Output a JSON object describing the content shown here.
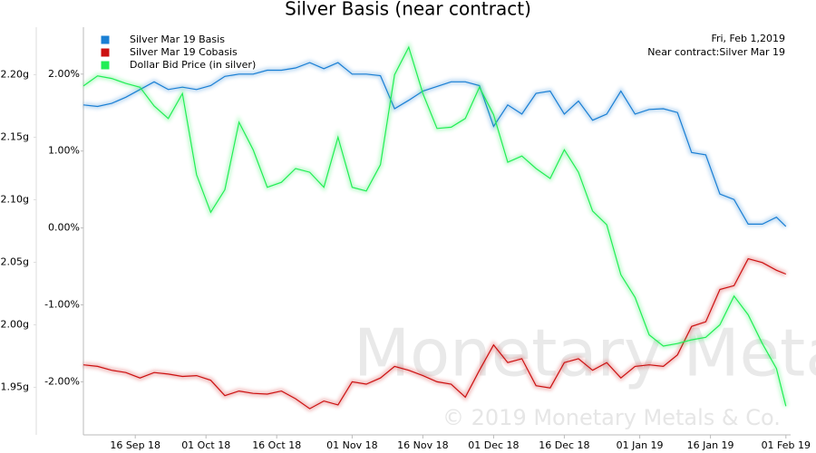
{
  "chart_data": {
    "type": "line",
    "title": "Silver Basis (near contract)",
    "annotations": [
      "Fri, Feb 1,2019",
      "Near contract:Silver Mar 19"
    ],
    "watermark": [
      "Monetary Metals",
      "© 2019 Monetary Metals & Co."
    ],
    "x": [
      "2018-09-05",
      "2018-09-08",
      "2018-09-11",
      "2018-09-14",
      "2018-09-17",
      "2018-09-20",
      "2018-09-23",
      "2018-09-26",
      "2018-09-29",
      "2018-10-02",
      "2018-10-05",
      "2018-10-08",
      "2018-10-11",
      "2018-10-14",
      "2018-10-17",
      "2018-10-20",
      "2018-10-23",
      "2018-10-26",
      "2018-10-29",
      "2018-11-01",
      "2018-11-04",
      "2018-11-07",
      "2018-11-10",
      "2018-11-13",
      "2018-11-16",
      "2018-11-19",
      "2018-11-22",
      "2018-11-25",
      "2018-11-28",
      "2018-12-01",
      "2018-12-04",
      "2018-12-07",
      "2018-12-10",
      "2018-12-13",
      "2018-12-16",
      "2018-12-19",
      "2018-12-22",
      "2018-12-25",
      "2018-12-28",
      "2018-12-31",
      "2019-01-03",
      "2019-01-06",
      "2019-01-09",
      "2019-01-12",
      "2019-01-15",
      "2019-01-18",
      "2019-01-21",
      "2019-01-24",
      "2019-01-27",
      "2019-01-30",
      "2019-02-01"
    ],
    "xlim": [
      "2018-09-05",
      "2019-02-02"
    ],
    "xticks": [
      {
        "value": "2018-09-16",
        "label": "16 Sep 18"
      },
      {
        "value": "2018-10-01",
        "label": "01 Oct 18"
      },
      {
        "value": "2018-10-16",
        "label": "16 Oct 18"
      },
      {
        "value": "2018-11-01",
        "label": "01 Nov 18"
      },
      {
        "value": "2018-11-16",
        "label": "16 Nov 18"
      },
      {
        "value": "2018-12-01",
        "label": "01 Dec 18"
      },
      {
        "value": "2018-12-16",
        "label": "16 Dec 18"
      },
      {
        "value": "2019-01-01",
        "label": "01 Jan 19"
      },
      {
        "value": "2019-01-16",
        "label": "16 Jan 19"
      },
      {
        "value": "2019-02-01",
        "label": "01 Feb 19"
      }
    ],
    "ylim": [
      -2.69,
      2.61
    ],
    "yticks": [
      {
        "value": 2,
        "label": "2.00%"
      },
      {
        "value": 1,
        "label": "1.00%"
      },
      {
        "value": 0,
        "label": "0.00%"
      },
      {
        "value": -1,
        "label": "-1.00%"
      },
      {
        "value": -2,
        "label": "-2.00%"
      }
    ],
    "y2lim": [
      1.912,
      2.238
    ],
    "y2ticks": [
      {
        "value": 2.2,
        "label": "2.20g"
      },
      {
        "value": 2.15,
        "label": "2.15g"
      },
      {
        "value": 2.1,
        "label": "2.10g"
      },
      {
        "value": 2.05,
        "label": "2.05g"
      },
      {
        "value": 2.0,
        "label": "2.00g"
      },
      {
        "value": 1.95,
        "label": "1.95g"
      }
    ],
    "legend": "top-left",
    "series": [
      {
        "name": "Silver Mar 19 Basis",
        "color": "#1a7fd4",
        "values": [
          1.6,
          1.58,
          1.62,
          1.7,
          1.8,
          1.9,
          1.8,
          1.83,
          1.8,
          1.85,
          1.97,
          2.0,
          2.0,
          2.05,
          2.05,
          2.08,
          2.15,
          2.07,
          2.15,
          2.0,
          2.0,
          1.98,
          1.55,
          1.66,
          1.78,
          1.84,
          1.9,
          1.9,
          1.85,
          1.32,
          1.6,
          1.48,
          1.75,
          1.78,
          1.48,
          1.65,
          1.4,
          1.48,
          1.78,
          1.48,
          1.54,
          1.55,
          1.5,
          0.98,
          0.95,
          0.44,
          0.37,
          0.05,
          0.05,
          0.14,
          0.02
        ]
      },
      {
        "name": "Silver Mar 19 Cobasis",
        "color": "#cc1111",
        "values": [
          -1.78,
          -1.8,
          -1.85,
          -1.88,
          -1.95,
          -1.88,
          -1.9,
          -1.93,
          -1.92,
          -1.98,
          -2.18,
          -2.12,
          -2.15,
          -2.16,
          -2.12,
          -2.22,
          -2.35,
          -2.25,
          -2.3,
          -2.0,
          -2.03,
          -1.95,
          -1.8,
          -1.85,
          -1.92,
          -2.0,
          -2.03,
          -2.2,
          -1.85,
          -1.52,
          -1.75,
          -1.7,
          -2.05,
          -2.08,
          -1.75,
          -1.7,
          -1.85,
          -1.75,
          -1.95,
          -1.8,
          -1.78,
          -1.8,
          -1.65,
          -1.28,
          -1.22,
          -0.8,
          -0.75,
          -0.4,
          -0.45,
          -0.55,
          -0.6
        ]
      },
      {
        "name": "Dollar Bid Price (in silver)",
        "color": "#22ee55",
        "axis": "y2",
        "values": [
          2.191,
          2.199,
          2.197,
          2.193,
          2.19,
          2.175,
          2.165,
          2.185,
          2.12,
          2.09,
          2.108,
          2.162,
          2.14,
          2.11,
          2.114,
          2.125,
          2.122,
          2.11,
          2.15,
          2.11,
          2.107,
          2.128,
          2.2,
          2.222,
          2.185,
          2.157,
          2.158,
          2.165,
          2.19,
          2.168,
          2.13,
          2.135,
          2.125,
          2.117,
          2.14,
          2.122,
          2.091,
          2.08,
          2.04,
          2.022,
          1.992,
          1.983,
          1.985,
          1.988,
          1.99,
          2.0,
          2.023,
          2.008,
          1.985,
          1.965,
          1.935
        ]
      }
    ]
  }
}
